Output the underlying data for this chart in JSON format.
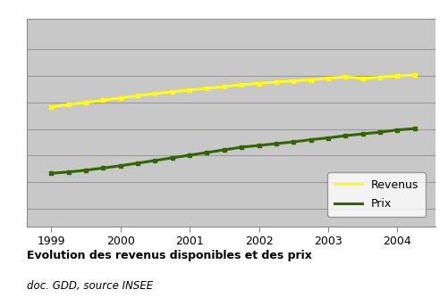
{
  "title_bold": "Evolution des revenus disponibles et des prix",
  "title_italic": "doc. GDD, source INSEE",
  "background_color": "#c8c8c8",
  "outer_bg_color": "#ffffff",
  "revenus_color": "#ffff00",
  "prix_color": "#336600",
  "revenus_label": "Revenus",
  "prix_label": "Prix",
  "x_ticks": [
    1999,
    2000,
    2001,
    2002,
    2003,
    2004
  ],
  "revenus_x": [
    1999.0,
    1999.25,
    1999.5,
    1999.75,
    2000.0,
    2000.25,
    2000.5,
    2000.75,
    2001.0,
    2001.25,
    2001.5,
    2001.75,
    2002.0,
    2002.25,
    2002.5,
    2002.75,
    2003.0,
    2003.25,
    2003.5,
    2003.75,
    2004.0,
    2004.25
  ],
  "revenus_y": [
    115,
    115.5,
    116.0,
    116.5,
    117.0,
    117.5,
    118.0,
    118.4,
    118.8,
    119.2,
    119.6,
    120.0,
    120.3,
    120.6,
    120.9,
    121.1,
    121.5,
    121.8,
    121.4,
    121.7,
    122.0,
    122.2
  ],
  "prix_x": [
    1999.0,
    1999.25,
    1999.5,
    1999.75,
    2000.0,
    2000.25,
    2000.5,
    2000.75,
    2001.0,
    2001.25,
    2001.5,
    2001.75,
    2002.0,
    2002.25,
    2002.5,
    2002.75,
    2003.0,
    2003.25,
    2003.5,
    2003.75,
    2004.0,
    2004.25
  ],
  "prix_y": [
    100,
    100.3,
    100.7,
    101.2,
    101.7,
    102.3,
    102.9,
    103.5,
    104.1,
    104.7,
    105.3,
    105.9,
    106.3,
    106.7,
    107.1,
    107.6,
    108.0,
    108.5,
    108.9,
    109.3,
    109.8,
    110.1
  ],
  "ylim": [
    88,
    135
  ],
  "y_gridlines": [
    92,
    98,
    104,
    110,
    116,
    122,
    128
  ],
  "grid_color": "#999999",
  "line_width": 2.2,
  "legend_box_color": "#ffffff",
  "tick_fontsize": 9,
  "title_fontsize": 9,
  "subtitle_fontsize": 8.5
}
